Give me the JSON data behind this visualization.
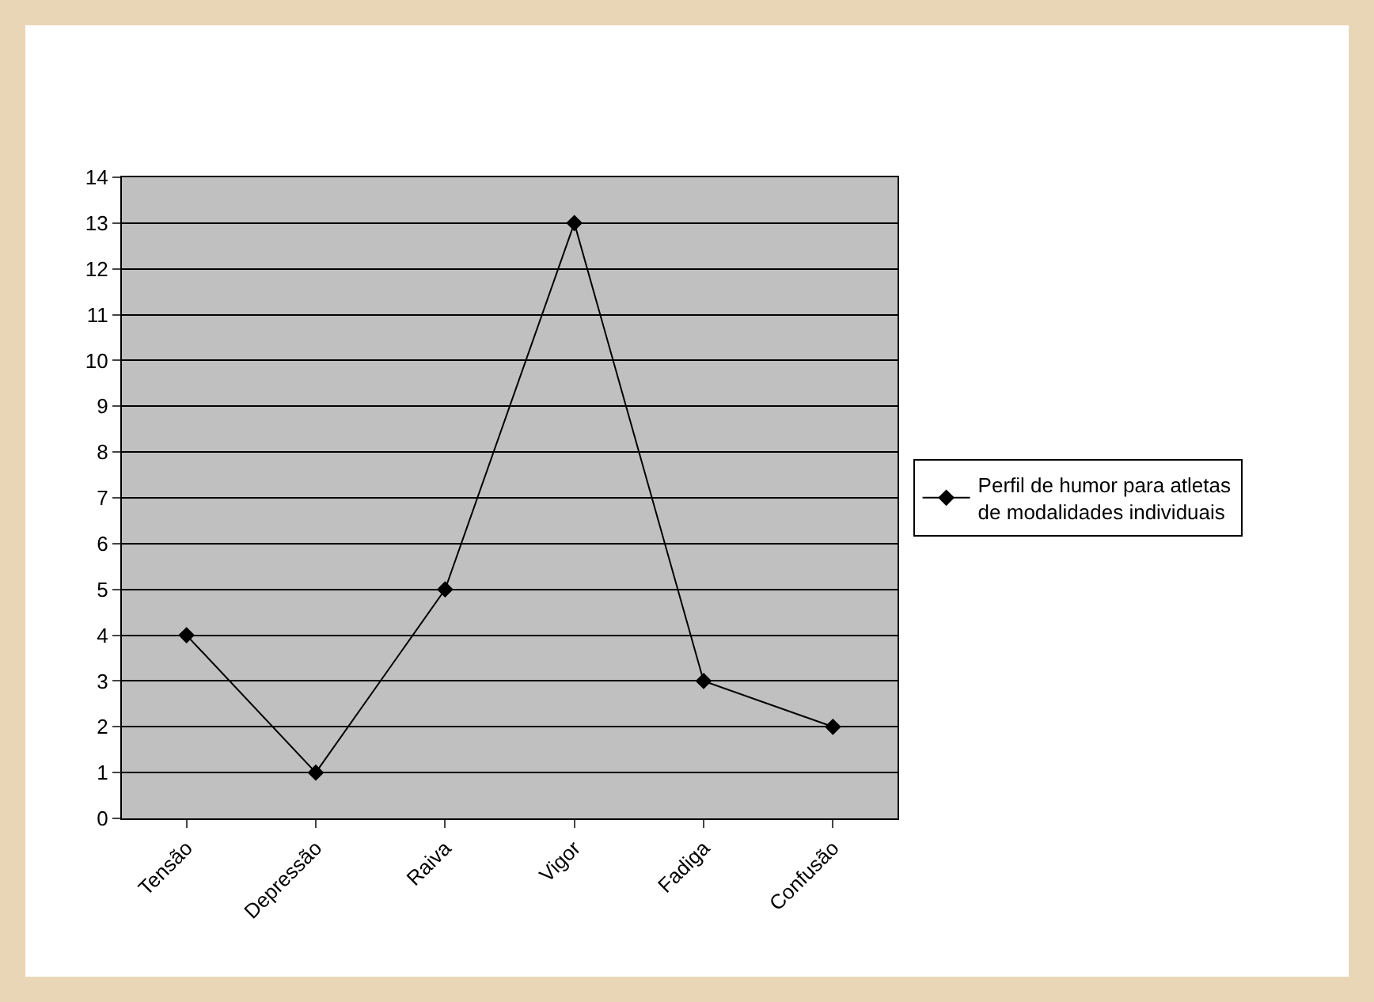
{
  "chart_data": {
    "type": "line",
    "categories": [
      "Tensão",
      "Depressão",
      "Raiva",
      "Vigor",
      "Fadiga",
      "Confusão"
    ],
    "series": [
      {
        "name": "Perfil de humor para atletas de modalidades individuais",
        "color": "#000000",
        "values": [
          4,
          1,
          5,
          13,
          3,
          2
        ]
      }
    ],
    "ylim": [
      0,
      14
    ],
    "yticks": [
      0,
      1,
      2,
      3,
      4,
      5,
      6,
      7,
      8,
      9,
      10,
      11,
      12,
      13,
      14
    ],
    "grid": "y",
    "legend": "right",
    "marker": "diamond",
    "line_style": "solid"
  }
}
